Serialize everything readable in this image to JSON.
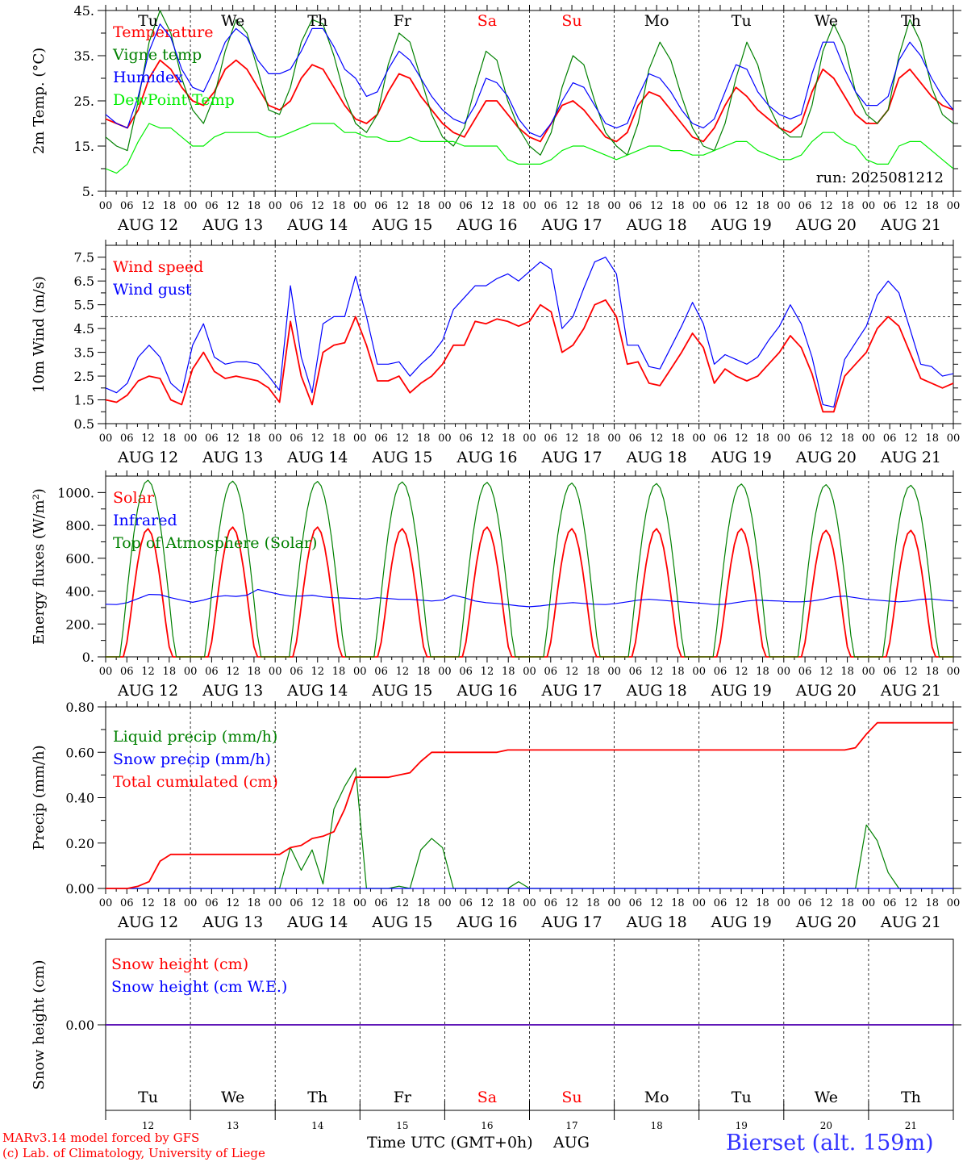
{
  "days": {
    "dates": [
      "AUG 12",
      "AUG 13",
      "AUG 14",
      "AUG 15",
      "AUG 16",
      "AUG 17",
      "AUG 18",
      "AUG 19",
      "AUG 20",
      "AUG 21"
    ],
    "weekdays": [
      "Tu",
      "We",
      "Th",
      "Fr",
      "Sa",
      "Su",
      "Mo",
      "Tu",
      "We",
      "Th"
    ],
    "weekend_flags": [
      false,
      false,
      false,
      false,
      true,
      true,
      false,
      false,
      false,
      false
    ],
    "day_numbers": [
      "12",
      "13",
      "14",
      "15",
      "16",
      "17",
      "18",
      "19",
      "20",
      "21"
    ],
    "hour_labels": [
      "00",
      "06",
      "12",
      "18"
    ],
    "final_hour_label": "00"
  },
  "colors": {
    "red": "#ff0000",
    "blue": "#0000ff",
    "darkgreen": "#008000",
    "lightgreen": "#00ee00",
    "weekend": "#ff0000",
    "station": "#3333ff"
  },
  "footer": {
    "model_line": "MARv3.14 model forced by GFS",
    "credit_line": "(c) Lab. of Climatology, University of Liege",
    "xlabel": "Time UTC (GMT+0h)",
    "month": "AUG",
    "station": "Bierset (alt. 159m)"
  },
  "chart_data": [
    {
      "type": "line",
      "ylabel": "2m Temp. (°C)",
      "ylim": [
        5,
        45
      ],
      "yticks": [
        "5.",
        "15.",
        "25.",
        "35.",
        "45."
      ],
      "annotation": "run: 2025081212",
      "series": [
        {
          "name": "Temperature",
          "color": "red",
          "values": [
            21,
            20,
            19,
            23,
            30,
            34,
            32,
            28,
            25,
            24,
            27,
            32,
            34,
            32,
            28,
            24,
            23,
            25,
            30,
            33,
            32,
            28,
            24,
            21,
            20,
            22,
            27,
            31,
            30,
            26,
            23,
            20,
            18,
            17,
            21,
            25,
            25,
            22,
            19,
            17,
            16,
            20,
            24,
            25,
            23,
            20,
            17,
            16,
            18,
            24,
            27,
            26,
            23,
            20,
            17,
            16,
            19,
            24,
            28,
            26,
            23,
            21,
            19,
            18,
            20,
            27,
            32,
            30,
            26,
            22,
            20,
            20,
            23,
            30,
            32,
            29,
            26,
            24,
            23
          ]
        },
        {
          "name": "Vigne temp",
          "color": "darkgreen",
          "values": [
            17,
            15,
            14,
            25,
            38,
            45,
            40,
            30,
            23,
            20,
            26,
            36,
            43,
            40,
            32,
            23,
            22,
            28,
            38,
            43,
            42,
            35,
            26,
            20,
            18,
            22,
            33,
            40,
            38,
            30,
            22,
            17,
            15,
            19,
            28,
            36,
            34,
            25,
            19,
            15,
            13,
            18,
            28,
            35,
            33,
            25,
            18,
            15,
            13,
            20,
            32,
            38,
            34,
            26,
            19,
            15,
            14,
            20,
            30,
            38,
            33,
            24,
            19,
            17,
            17,
            24,
            36,
            42,
            37,
            27,
            22,
            20,
            23,
            35,
            43,
            38,
            28,
            22,
            20
          ]
        },
        {
          "name": "Humidex",
          "color": "blue",
          "values": [
            22,
            20,
            19,
            26,
            36,
            42,
            39,
            32,
            28,
            27,
            32,
            38,
            41,
            39,
            34,
            31,
            31,
            32,
            36,
            41,
            41,
            37,
            32,
            30,
            26,
            27,
            32,
            36,
            34,
            30,
            26,
            23,
            21,
            20,
            24,
            30,
            29,
            26,
            21,
            18,
            17,
            20,
            25,
            29,
            28,
            24,
            20,
            19,
            20,
            26,
            31,
            30,
            27,
            23,
            20,
            19,
            21,
            27,
            33,
            32,
            27,
            24,
            22,
            21,
            22,
            31,
            38,
            38,
            32,
            27,
            24,
            24,
            26,
            34,
            38,
            35,
            30,
            26,
            23
          ]
        },
        {
          "name": "DewPoint Temp",
          "color": "lightgreen",
          "values": [
            10,
            9,
            11,
            16,
            20,
            19,
            19,
            17,
            15,
            15,
            17,
            18,
            18,
            18,
            18,
            17,
            17,
            18,
            19,
            20,
            20,
            20,
            18,
            18,
            17,
            17,
            16,
            16,
            17,
            16,
            16,
            16,
            16,
            15,
            15,
            15,
            15,
            12,
            11,
            11,
            11,
            12,
            14,
            15,
            15,
            14,
            13,
            12,
            13,
            14,
            15,
            15,
            14,
            14,
            13,
            13,
            14,
            15,
            16,
            16,
            14,
            13,
            12,
            12,
            13,
            16,
            18,
            18,
            16,
            15,
            12,
            11,
            11,
            15,
            16,
            16,
            14,
            12,
            10
          ]
        }
      ]
    },
    {
      "type": "line",
      "ylabel": "10m Wind (m/s)",
      "ylim": [
        0.5,
        8
      ],
      "yticks": [
        "0.5",
        "1.5",
        "2.5",
        "3.5",
        "4.5",
        "5.5",
        "6.5",
        "7.5"
      ],
      "reference_line": 5,
      "series": [
        {
          "name": "Wind speed",
          "color": "red",
          "values": [
            1.5,
            1.4,
            1.7,
            2.3,
            2.5,
            2.4,
            1.5,
            1.3,
            2.8,
            3.5,
            2.7,
            2.4,
            2.5,
            2.4,
            2.3,
            2.0,
            1.4,
            4.8,
            2.5,
            1.3,
            3.5,
            3.8,
            3.9,
            5.0,
            3.8,
            2.3,
            2.3,
            2.5,
            1.8,
            2.2,
            2.5,
            3.0,
            3.8,
            3.8,
            4.8,
            4.7,
            4.9,
            4.8,
            4.6,
            4.8,
            5.5,
            5.2,
            3.5,
            3.8,
            4.5,
            5.5,
            5.7,
            5.0,
            3.0,
            3.1,
            2.2,
            2.1,
            2.8,
            3.5,
            4.3,
            3.7,
            2.2,
            2.8,
            2.5,
            2.3,
            2.5,
            3.0,
            3.5,
            4.2,
            3.7,
            2.6,
            1.0,
            1.0,
            2.5,
            3.0,
            3.5,
            4.5,
            5.0,
            4.6,
            3.5,
            2.4,
            2.2,
            2.0,
            2.2
          ]
        },
        {
          "name": "Wind gust",
          "color": "blue",
          "values": [
            2.0,
            1.8,
            2.2,
            3.3,
            3.8,
            3.3,
            2.2,
            1.8,
            3.8,
            4.7,
            3.3,
            3.0,
            3.1,
            3.1,
            3.0,
            2.5,
            1.9,
            6.3,
            3.3,
            1.8,
            4.7,
            5.0,
            5.0,
            6.7,
            5.0,
            3.0,
            3.0,
            3.1,
            2.5,
            3.0,
            3.4,
            4.0,
            5.3,
            5.8,
            6.3,
            6.3,
            6.6,
            6.8,
            6.5,
            6.9,
            7.3,
            7.0,
            4.5,
            5.0,
            6.2,
            7.3,
            7.5,
            6.8,
            3.8,
            3.8,
            2.9,
            2.8,
            3.7,
            4.6,
            5.6,
            4.7,
            3.0,
            3.4,
            3.2,
            3.0,
            3.3,
            4.0,
            4.6,
            5.5,
            4.7,
            3.3,
            1.3,
            1.2,
            3.2,
            3.9,
            4.6,
            5.9,
            6.5,
            6.0,
            4.5,
            3.0,
            2.9,
            2.5,
            2.6
          ]
        }
      ]
    },
    {
      "type": "line",
      "ylabel": "Energy fluxes (W/m²)",
      "ylim": [
        0,
        1100
      ],
      "yticks": [
        "0.",
        "200.",
        "400.",
        "600.",
        "800.",
        "1000."
      ],
      "series": [
        {
          "name": "Solar",
          "color": "red",
          "peaks": [
            780,
            790,
            790,
            780,
            790,
            780,
            780,
            780,
            770,
            770
          ]
        },
        {
          "name": "Infrared",
          "color": "blue",
          "values": [
            320,
            318,
            330,
            355,
            380,
            378,
            360,
            345,
            332,
            345,
            365,
            372,
            368,
            375,
            410,
            395,
            380,
            370,
            370,
            375,
            365,
            360,
            358,
            355,
            352,
            360,
            355,
            350,
            350,
            345,
            340,
            345,
            375,
            360,
            340,
            330,
            325,
            318,
            310,
            305,
            310,
            318,
            325,
            330,
            325,
            320,
            318,
            325,
            335,
            345,
            350,
            345,
            340,
            335,
            330,
            325,
            318,
            320,
            330,
            340,
            345,
            342,
            340,
            335,
            335,
            340,
            350,
            365,
            370,
            360,
            350,
            345,
            340,
            335,
            340,
            350,
            352,
            345,
            340
          ]
        },
        {
          "name": "Top of Atmosphere (Solar)",
          "color": "darkgreen",
          "peaks": [
            1075,
            1070,
            1068,
            1065,
            1062,
            1058,
            1055,
            1052,
            1048,
            1044
          ]
        }
      ]
    },
    {
      "type": "line",
      "ylabel": "Precip (mm/h)",
      "ylim": [
        0,
        0.8
      ],
      "yticks": [
        "0.00",
        "0.20",
        "0.40",
        "0.60",
        "0.80"
      ],
      "series": [
        {
          "name": "Liquid precip (mm/h)",
          "color": "darkgreen",
          "values": [
            0,
            0,
            0,
            0,
            0,
            0,
            0,
            0,
            0,
            0,
            0,
            0,
            0,
            0,
            0,
            0,
            0,
            0.18,
            0.08,
            0.17,
            0.02,
            0.35,
            0.45,
            0.53,
            0,
            0,
            0,
            0.01,
            0,
            0.17,
            0.22,
            0.18,
            0,
            0,
            0,
            0,
            0,
            0,
            0.03,
            0,
            0,
            0,
            0,
            0,
            0,
            0,
            0,
            0,
            0,
            0,
            0,
            0,
            0,
            0,
            0,
            0,
            0,
            0,
            0,
            0,
            0,
            0,
            0,
            0,
            0,
            0,
            0,
            0,
            0,
            0,
            0.28,
            0.21,
            0.07,
            0,
            0,
            0,
            0,
            0,
            0
          ]
        },
        {
          "name": "Snow precip (mm/h)",
          "color": "blue",
          "values": [
            0,
            0,
            0,
            0,
            0,
            0,
            0,
            0,
            0,
            0,
            0,
            0,
            0,
            0,
            0,
            0,
            0,
            0,
            0,
            0,
            0,
            0,
            0,
            0,
            0,
            0,
            0,
            0,
            0,
            0,
            0,
            0,
            0,
            0,
            0,
            0,
            0,
            0,
            0,
            0,
            0,
            0,
            0,
            0,
            0,
            0,
            0,
            0,
            0,
            0,
            0,
            0,
            0,
            0,
            0,
            0,
            0,
            0,
            0,
            0,
            0,
            0,
            0,
            0,
            0,
            0,
            0,
            0,
            0,
            0,
            0,
            0,
            0,
            0,
            0,
            0,
            0,
            0,
            0
          ]
        },
        {
          "name": "Total cumulated (cm)",
          "color": "red",
          "values": [
            0,
            0,
            0,
            0.01,
            0.03,
            0.12,
            0.15,
            0.15,
            0.15,
            0.15,
            0.15,
            0.15,
            0.15,
            0.15,
            0.15,
            0.15,
            0.15,
            0.18,
            0.19,
            0.22,
            0.23,
            0.25,
            0.35,
            0.49,
            0.49,
            0.49,
            0.49,
            0.5,
            0.51,
            0.56,
            0.6,
            0.6,
            0.6,
            0.6,
            0.6,
            0.6,
            0.6,
            0.61,
            0.61,
            0.61,
            0.61,
            0.61,
            0.61,
            0.61,
            0.61,
            0.61,
            0.61,
            0.61,
            0.61,
            0.61,
            0.61,
            0.61,
            0.61,
            0.61,
            0.61,
            0.61,
            0.61,
            0.61,
            0.61,
            0.61,
            0.61,
            0.61,
            0.61,
            0.61,
            0.61,
            0.61,
            0.61,
            0.61,
            0.61,
            0.62,
            0.68,
            0.73,
            0.73,
            0.73,
            0.73,
            0.73,
            0.73,
            0.73,
            0.73
          ]
        }
      ]
    },
    {
      "type": "line",
      "ylabel": "Snow height (cm)",
      "ylim": [
        -1,
        1
      ],
      "yticks": [
        "0.00"
      ],
      "series": [
        {
          "name": "Snow height (cm)",
          "color": "red",
          "values": [
            0,
            0
          ]
        },
        {
          "name": "Snow height (cm W.E.)",
          "color": "blue",
          "values": [
            0,
            0
          ]
        }
      ]
    }
  ]
}
